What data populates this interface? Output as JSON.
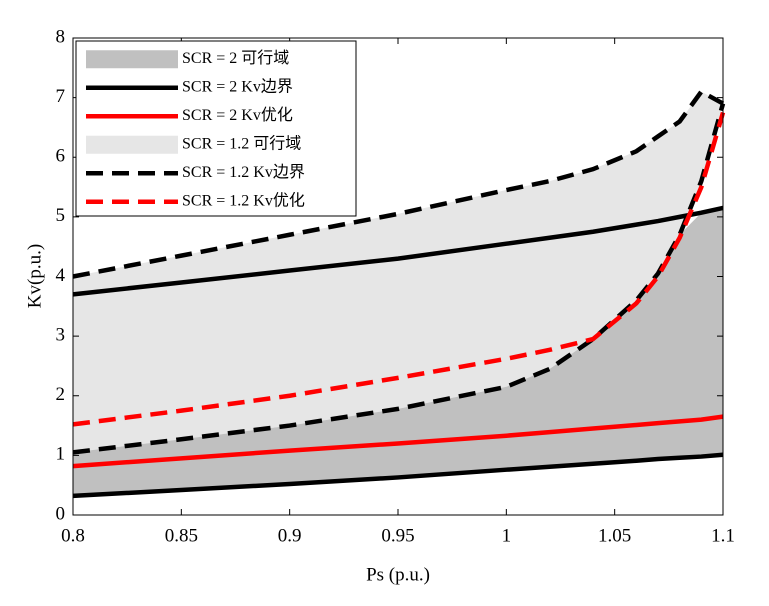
{
  "chart_data": {
    "type": "line",
    "xlabel": "Ps (p.u.)",
    "ylabel": "Kv(p.u.)",
    "x": [
      0.8,
      0.85,
      0.9,
      0.95,
      1.0,
      1.02,
      1.04,
      1.06,
      1.07,
      1.08,
      1.09,
      1.1
    ],
    "xlim": [
      0.8,
      1.1
    ],
    "xticks": [
      0.8,
      0.85,
      0.9,
      0.95,
      1,
      1.05,
      1.1
    ],
    "ylim": [
      0,
      8
    ],
    "yticks": [
      0,
      1,
      2,
      3,
      4,
      5,
      6,
      7,
      8
    ],
    "grid": false,
    "legend": "upper left",
    "series": [
      {
        "name": "SCR = 1.2 可行域",
        "kind": "area",
        "color": "#e6e6e6",
        "lower": [
          1.05,
          1.27,
          1.5,
          1.78,
          2.15,
          2.45,
          2.95,
          3.6,
          4.05,
          4.7,
          5.6,
          6.9
        ],
        "upper": [
          4.0,
          4.35,
          4.7,
          5.05,
          5.45,
          5.6,
          5.8,
          6.1,
          6.35,
          6.6,
          7.1,
          6.9
        ]
      },
      {
        "name": "SCR = 2 可行域",
        "kind": "area",
        "color": "#c0c0c0",
        "lower": [
          0.32,
          0.42,
          0.52,
          0.63,
          0.76,
          0.81,
          0.86,
          0.91,
          0.94,
          0.96,
          0.98,
          1.01
        ],
        "upper": [
          1.05,
          1.27,
          1.5,
          1.78,
          2.15,
          2.45,
          2.95,
          3.6,
          4.05,
          4.7,
          5.07,
          5.15
        ]
      },
      {
        "name": "SCR = 2 Kv边界",
        "kind": "line",
        "color": "#000000",
        "dash": false,
        "lower": [
          0.32,
          0.42,
          0.52,
          0.63,
          0.76,
          0.81,
          0.86,
          0.91,
          0.94,
          0.96,
          0.98,
          1.01
        ],
        "upper": [
          3.7,
          3.9,
          4.1,
          4.3,
          4.55,
          4.65,
          4.75,
          4.87,
          4.93,
          5.0,
          5.07,
          5.15
        ]
      },
      {
        "name": "SCR = 2 Kv优化",
        "kind": "line",
        "color": "#ff0000",
        "dash": false,
        "values": [
          0.82,
          0.95,
          1.08,
          1.2,
          1.33,
          1.39,
          1.45,
          1.51,
          1.54,
          1.57,
          1.6,
          1.65
        ]
      },
      {
        "name": "SCR = 1.2 Kv边界",
        "kind": "line",
        "color": "#000000",
        "dash": true,
        "lower": [
          1.05,
          1.27,
          1.5,
          1.78,
          2.15,
          2.45,
          2.95,
          3.6,
          4.05,
          4.7,
          5.6,
          6.9
        ],
        "upper": [
          4.0,
          4.35,
          4.7,
          5.05,
          5.45,
          5.6,
          5.8,
          6.1,
          6.35,
          6.6,
          7.1,
          6.9
        ]
      },
      {
        "name": "SCR = 1.2 Kv优化",
        "kind": "line",
        "color": "#ff0000",
        "dash": true,
        "values": [
          1.52,
          1.75,
          2.0,
          2.3,
          2.62,
          2.77,
          2.95,
          3.55,
          4.0,
          4.65,
          5.5,
          6.75
        ]
      }
    ],
    "legend_order": [
      1,
      2,
      3,
      0,
      4,
      5
    ]
  }
}
